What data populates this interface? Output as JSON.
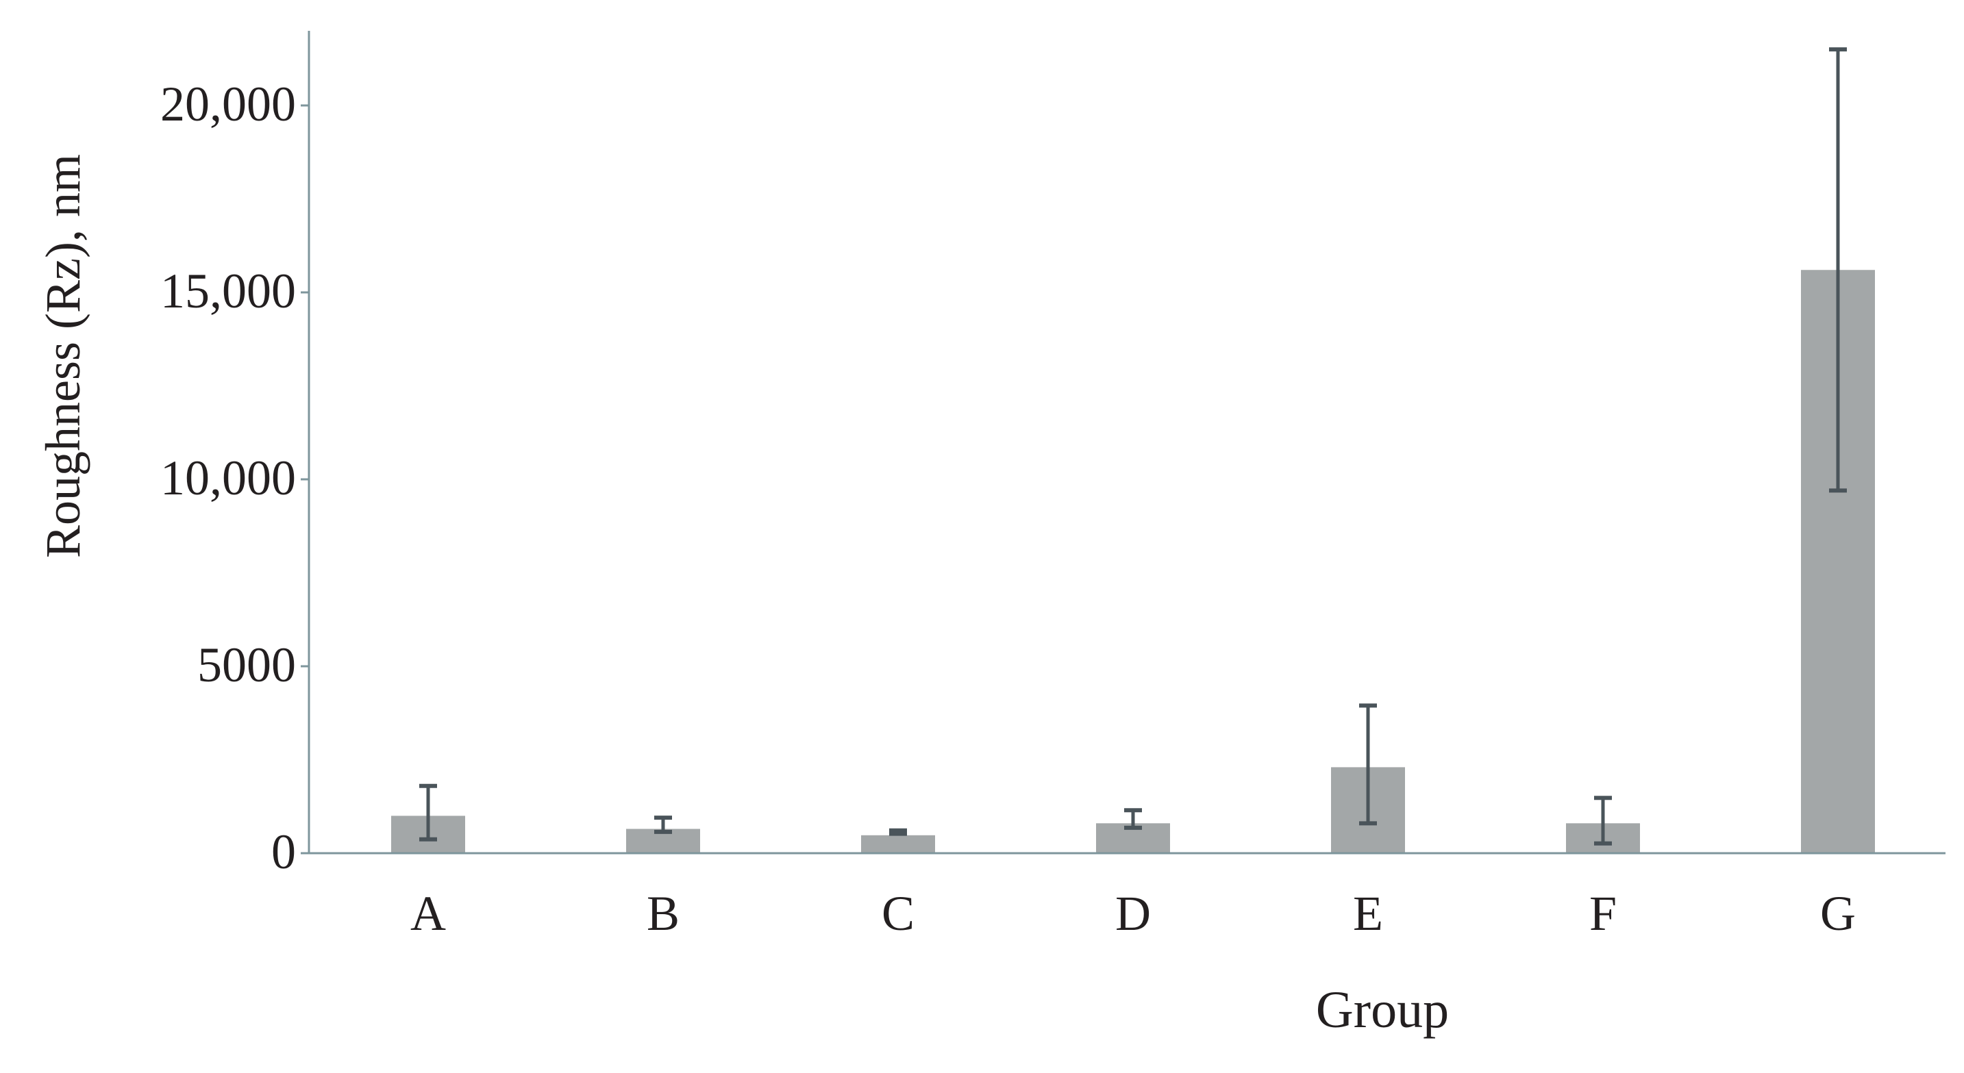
{
  "chart_data": {
    "type": "bar",
    "title": "",
    "xlabel": "Group",
    "ylabel": "Roughness (Rz), nm",
    "categories": [
      "A",
      "B",
      "C",
      "D",
      "E",
      "F",
      "G"
    ],
    "series": [
      {
        "values": [
          1000,
          650,
          480,
          800,
          2300,
          800,
          15600
        ],
        "error_low": [
          370,
          570,
          520,
          680,
          800,
          260,
          9700
        ],
        "error_high": [
          1800,
          950,
          610,
          1150,
          3950,
          1480,
          21500
        ]
      }
    ],
    "ylim": [
      0,
      22000
    ],
    "yticks": [
      0,
      5000,
      10000,
      15000,
      20000
    ],
    "ytick_labels": [
      "0",
      "5000",
      "10,000",
      "15,000",
      "20,000"
    ],
    "grid": false,
    "legend": "none",
    "colors": {
      "bar": "#a3a7a8",
      "error_bar": "#4a545a",
      "axis": "#7e969c",
      "text": "#231f20"
    }
  }
}
